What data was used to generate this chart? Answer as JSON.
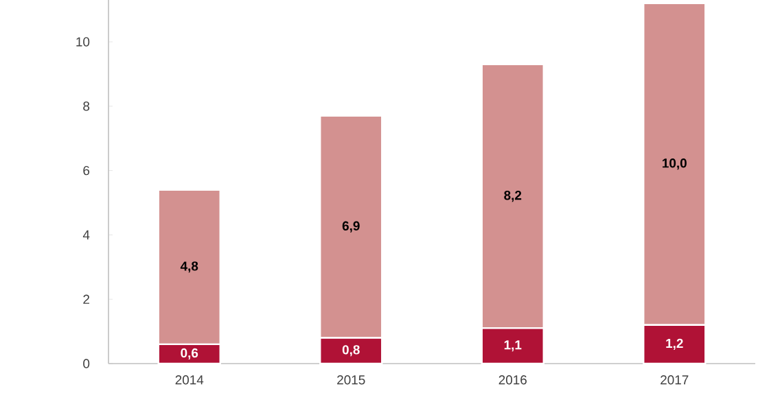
{
  "chart_data": {
    "type": "bar",
    "stacked": true,
    "categories": [
      "2014",
      "2015",
      "2016",
      "2017"
    ],
    "series": [
      {
        "color": "#b01236",
        "values": [
          0.6,
          0.8,
          1.1,
          1.2
        ],
        "value_labels": [
          "0,6",
          "0,8",
          "1,1",
          "1,2"
        ]
      },
      {
        "color": "#d39190",
        "values": [
          4.8,
          6.9,
          8.2,
          10.0
        ],
        "value_labels": [
          "4,8",
          "6,9",
          "8,2",
          "10,0"
        ]
      }
    ],
    "ylim": [
      0,
      11.3
    ],
    "yticks": [
      0,
      2,
      4,
      6,
      8,
      10
    ]
  }
}
